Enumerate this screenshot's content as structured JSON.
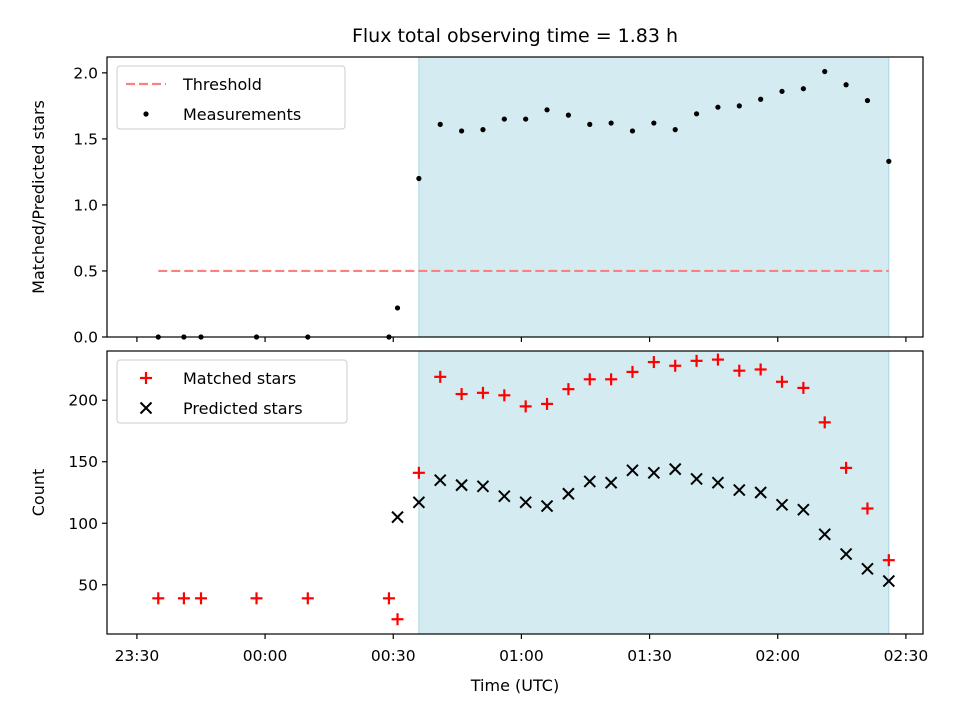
{
  "chart_data": {
    "title": "Flux total observing time = 1.83 h",
    "xlabel": "Time (UTC)",
    "x_ticks": [
      "23:30",
      "00:00",
      "00:30",
      "01:00",
      "01:30",
      "02:00",
      "02:30"
    ],
    "x_range": [
      "23:23",
      "02:34"
    ],
    "observing_window": {
      "start": "00:36",
      "end": "02:26",
      "color": "#d3ebf1"
    },
    "panels": [
      {
        "name": "ratio",
        "type": "scatter",
        "ylabel": "Matched/Predicted stars",
        "ylim": [
          0,
          2.12
        ],
        "y_ticks": [
          "0.0",
          "0.5",
          "1.0",
          "1.5",
          "2.0"
        ],
        "legend": {
          "placement": "top-left",
          "entries": [
            "Threshold",
            "Measurements"
          ]
        },
        "threshold": {
          "name": "Threshold",
          "value": 0.5,
          "x_start": "23:35",
          "x_end": "02:26",
          "color": "#ff7f7f",
          "style": "dashed"
        },
        "series": [
          {
            "name": "Measurements",
            "marker": "dot",
            "color": "#000000",
            "points": [
              [
                "23:35",
                0.0
              ],
              [
                "23:41",
                0.0
              ],
              [
                "23:45",
                0.0
              ],
              [
                "23:58",
                0.0
              ],
              [
                "00:10",
                0.0
              ],
              [
                "00:29",
                0.0
              ],
              [
                "00:31",
                0.22
              ],
              [
                "00:36",
                1.2
              ],
              [
                "00:41",
                1.61
              ],
              [
                "00:46",
                1.56
              ],
              [
                "00:51",
                1.57
              ],
              [
                "00:56",
                1.65
              ],
              [
                "01:01",
                1.65
              ],
              [
                "01:06",
                1.72
              ],
              [
                "01:11",
                1.68
              ],
              [
                "01:16",
                1.61
              ],
              [
                "01:21",
                1.62
              ],
              [
                "01:26",
                1.56
              ],
              [
                "01:31",
                1.62
              ],
              [
                "01:36",
                1.57
              ],
              [
                "01:41",
                1.69
              ],
              [
                "01:46",
                1.74
              ],
              [
                "01:51",
                1.75
              ],
              [
                "01:56",
                1.8
              ],
              [
                "02:01",
                1.86
              ],
              [
                "02:06",
                1.88
              ],
              [
                "02:11",
                2.01
              ],
              [
                "02:16",
                1.91
              ],
              [
                "02:21",
                1.79
              ],
              [
                "02:26",
                1.33
              ]
            ]
          }
        ]
      },
      {
        "name": "count",
        "type": "scatter",
        "ylabel": "Count",
        "ylim": [
          10,
          240
        ],
        "y_ticks": [
          "50",
          "100",
          "150",
          "200"
        ],
        "legend": {
          "placement": "top-left",
          "entries": [
            "Matched stars",
            "Predicted stars"
          ]
        },
        "series": [
          {
            "name": "Matched stars",
            "marker": "plus",
            "color": "#ff0000",
            "points": [
              [
                "23:35",
                39
              ],
              [
                "23:41",
                39
              ],
              [
                "23:45",
                39
              ],
              [
                "23:58",
                39
              ],
              [
                "00:10",
                39
              ],
              [
                "00:29",
                39
              ],
              [
                "00:31",
                22
              ],
              [
                "00:36",
                141
              ],
              [
                "00:41",
                219
              ],
              [
                "00:46",
                205
              ],
              [
                "00:51",
                206
              ],
              [
                "00:56",
                204
              ],
              [
                "01:01",
                195
              ],
              [
                "01:06",
                197
              ],
              [
                "01:11",
                209
              ],
              [
                "01:16",
                217
              ],
              [
                "01:21",
                217
              ],
              [
                "01:26",
                223
              ],
              [
                "01:31",
                231
              ],
              [
                "01:36",
                228
              ],
              [
                "01:41",
                232
              ],
              [
                "01:46",
                233
              ],
              [
                "01:51",
                224
              ],
              [
                "01:56",
                225
              ],
              [
                "02:01",
                215
              ],
              [
                "02:06",
                210
              ],
              [
                "02:11",
                182
              ],
              [
                "02:16",
                145
              ],
              [
                "02:21",
                112
              ],
              [
                "02:26",
                70
              ]
            ]
          },
          {
            "name": "Predicted stars",
            "marker": "x",
            "color": "#000000",
            "points": [
              [
                "00:31",
                105
              ],
              [
                "00:36",
                117
              ],
              [
                "00:41",
                135
              ],
              [
                "00:46",
                131
              ],
              [
                "00:51",
                130
              ],
              [
                "00:56",
                122
              ],
              [
                "01:01",
                117
              ],
              [
                "01:06",
                114
              ],
              [
                "01:11",
                124
              ],
              [
                "01:16",
                134
              ],
              [
                "01:21",
                133
              ],
              [
                "01:26",
                143
              ],
              [
                "01:31",
                141
              ],
              [
                "01:36",
                144
              ],
              [
                "01:41",
                136
              ],
              [
                "01:46",
                133
              ],
              [
                "01:51",
                127
              ],
              [
                "01:56",
                125
              ],
              [
                "02:01",
                115
              ],
              [
                "02:06",
                111
              ],
              [
                "02:11",
                91
              ],
              [
                "02:16",
                75
              ],
              [
                "02:21",
                63
              ],
              [
                "02:26",
                53
              ]
            ]
          }
        ]
      }
    ]
  }
}
